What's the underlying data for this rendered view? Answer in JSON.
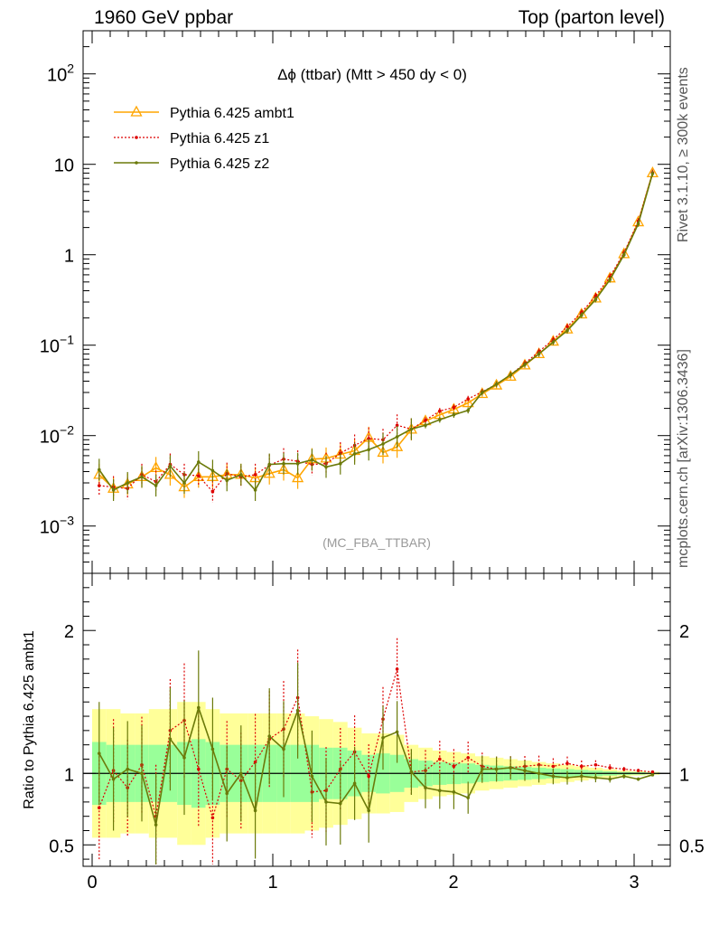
{
  "header": {
    "left_title": "1960 GeV ppbar",
    "right_title": "Top (parton level)"
  },
  "side_labels": {
    "rivet": "Rivet 3.1.10, ≥ 300k events",
    "mcplots": "mcplots.cern.ch [arXiv:1306.3436]"
  },
  "chart_data": [
    {
      "type": "line",
      "title": "Δϕ (ttbar) (Mtt > 450 dy < 0)",
      "watermark": "(MC_FBA_TTBAR)",
      "xlabel": "",
      "ylabel": "",
      "yscale": "log",
      "xlim": [
        -0.05,
        3.2
      ],
      "ylim": [
        0.0003,
        300
      ],
      "y_tick_labels": [
        "10^-3",
        "10^-2",
        "10^-1",
        "1",
        "10",
        "10^2"
      ],
      "x": [
        0.039,
        0.118,
        0.196,
        0.275,
        0.353,
        0.432,
        0.51,
        0.589,
        0.667,
        0.746,
        0.824,
        0.903,
        0.981,
        1.06,
        1.138,
        1.217,
        1.295,
        1.374,
        1.453,
        1.531,
        1.61,
        1.688,
        1.767,
        1.845,
        1.924,
        2.002,
        2.081,
        2.159,
        2.238,
        2.316,
        2.395,
        2.473,
        2.552,
        2.63,
        2.709,
        2.787,
        2.866,
        2.944,
        3.023,
        3.102
      ],
      "series": [
        {
          "name": "Pythia 6.425 ambt1",
          "color": "#FFA500",
          "style": "solid",
          "marker": "triangle",
          "values": [
            0.0037,
            0.0026,
            0.0029,
            0.0035,
            0.0044,
            0.0037,
            0.0027,
            0.0035,
            0.0035,
            0.0037,
            0.0037,
            0.0034,
            0.0038,
            0.0042,
            0.0034,
            0.0055,
            0.0056,
            0.0062,
            0.0068,
            0.0095,
            0.0065,
            0.0075,
            0.0117,
            0.0145,
            0.017,
            0.0195,
            0.023,
            0.029,
            0.036,
            0.045,
            0.06,
            0.08,
            0.11,
            0.15,
            0.22,
            0.33,
            0.55,
            1.02,
            2.3,
            8.0
          ]
        },
        {
          "name": "Pythia 6.425 z1",
          "color": "#DD0000",
          "style": "dotted",
          "marker": "dot",
          "values": [
            0.0028,
            0.0027,
            0.0026,
            0.0037,
            0.0031,
            0.0048,
            0.0037,
            0.0036,
            0.0024,
            0.0038,
            0.0035,
            0.0037,
            0.0047,
            0.0055,
            0.0052,
            0.0048,
            0.0049,
            0.0064,
            0.0078,
            0.0093,
            0.009,
            0.013,
            0.0118,
            0.0148,
            0.0187,
            0.0205,
            0.0255,
            0.0305,
            0.037,
            0.047,
            0.063,
            0.085,
            0.115,
            0.16,
            0.23,
            0.35,
            0.57,
            1.05,
            2.35,
            8.1
          ]
        },
        {
          "name": "Pythia 6.425 z2",
          "color": "#6B7A0A",
          "style": "solid",
          "marker": "dot",
          "values": [
            0.0042,
            0.0025,
            0.003,
            0.0035,
            0.0028,
            0.0046,
            0.003,
            0.0051,
            0.0041,
            0.0032,
            0.0037,
            0.0025,
            0.0048,
            0.0049,
            0.0049,
            0.0054,
            0.0045,
            0.0049,
            0.0063,
            0.007,
            0.0081,
            0.0097,
            0.0118,
            0.013,
            0.015,
            0.017,
            0.019,
            0.03,
            0.037,
            0.047,
            0.061,
            0.08,
            0.108,
            0.145,
            0.215,
            0.32,
            0.53,
            1.0,
            2.2,
            7.9
          ]
        }
      ],
      "legend_position": "top-left"
    },
    {
      "type": "line",
      "title": "",
      "ylabel": "Ratio to Pythia 6.425 ambt1",
      "xlim": [
        -0.05,
        3.2
      ],
      "ylim": [
        0.35,
        2.4
      ],
      "x_tick_labels": [
        "0",
        "1",
        "2",
        "3"
      ],
      "y_tick_labels": [
        "0.5",
        "1",
        "2"
      ],
      "reference": 1.0,
      "band_colors": {
        "inner": "#99FF99",
        "outer": "#FFFF99"
      },
      "band_half_width_inner": [
        0.22,
        0.2,
        0.2,
        0.2,
        0.2,
        0.2,
        0.22,
        0.24,
        0.22,
        0.2,
        0.2,
        0.2,
        0.2,
        0.2,
        0.2,
        0.2,
        0.18,
        0.18,
        0.16,
        0.13,
        0.14,
        0.13,
        0.1,
        0.09,
        0.08,
        0.075,
        0.07,
        0.06,
        0.055,
        0.05,
        0.045,
        0.04,
        0.035,
        0.03,
        0.025,
        0.02,
        0.015,
        0.01,
        0.008,
        0.005
      ],
      "band_half_width_outer": [
        0.45,
        0.45,
        0.42,
        0.42,
        0.45,
        0.45,
        0.5,
        0.5,
        0.45,
        0.42,
        0.42,
        0.42,
        0.42,
        0.42,
        0.42,
        0.4,
        0.38,
        0.36,
        0.32,
        0.28,
        0.28,
        0.27,
        0.2,
        0.18,
        0.16,
        0.15,
        0.14,
        0.12,
        0.11,
        0.1,
        0.09,
        0.08,
        0.07,
        0.06,
        0.05,
        0.04,
        0.03,
        0.02,
        0.015,
        0.01
      ],
      "series": [
        {
          "name": "Pythia 6.425 z1",
          "color": "#DD0000",
          "style": "dotted",
          "values": [
            0.76,
            1.02,
            0.9,
            1.06,
            0.7,
            1.3,
            1.37,
            1.03,
            0.69,
            1.03,
            0.95,
            1.08,
            1.24,
            1.31,
            1.53,
            0.87,
            0.88,
            1.03,
            1.15,
            0.98,
            1.38,
            1.73,
            1.01,
            1.02,
            1.1,
            1.05,
            1.11,
            1.05,
            1.03,
            1.04,
            1.05,
            1.06,
            1.05,
            1.07,
            1.05,
            1.06,
            1.04,
            1.03,
            1.02,
            1.01
          ]
        },
        {
          "name": "Pythia 6.425 z2",
          "color": "#6B7A0A",
          "style": "solid",
          "values": [
            1.14,
            0.96,
            1.03,
            1.0,
            0.64,
            1.24,
            1.11,
            1.46,
            1.17,
            0.86,
            1.0,
            0.74,
            1.26,
            1.17,
            1.44,
            0.98,
            0.8,
            0.79,
            0.93,
            0.74,
            1.25,
            1.29,
            1.01,
            0.9,
            0.88,
            0.87,
            0.83,
            1.03,
            1.03,
            1.04,
            1.02,
            1.0,
            0.98,
            0.97,
            0.98,
            0.97,
            0.96,
            0.98,
            0.96,
            0.99
          ]
        }
      ]
    }
  ]
}
